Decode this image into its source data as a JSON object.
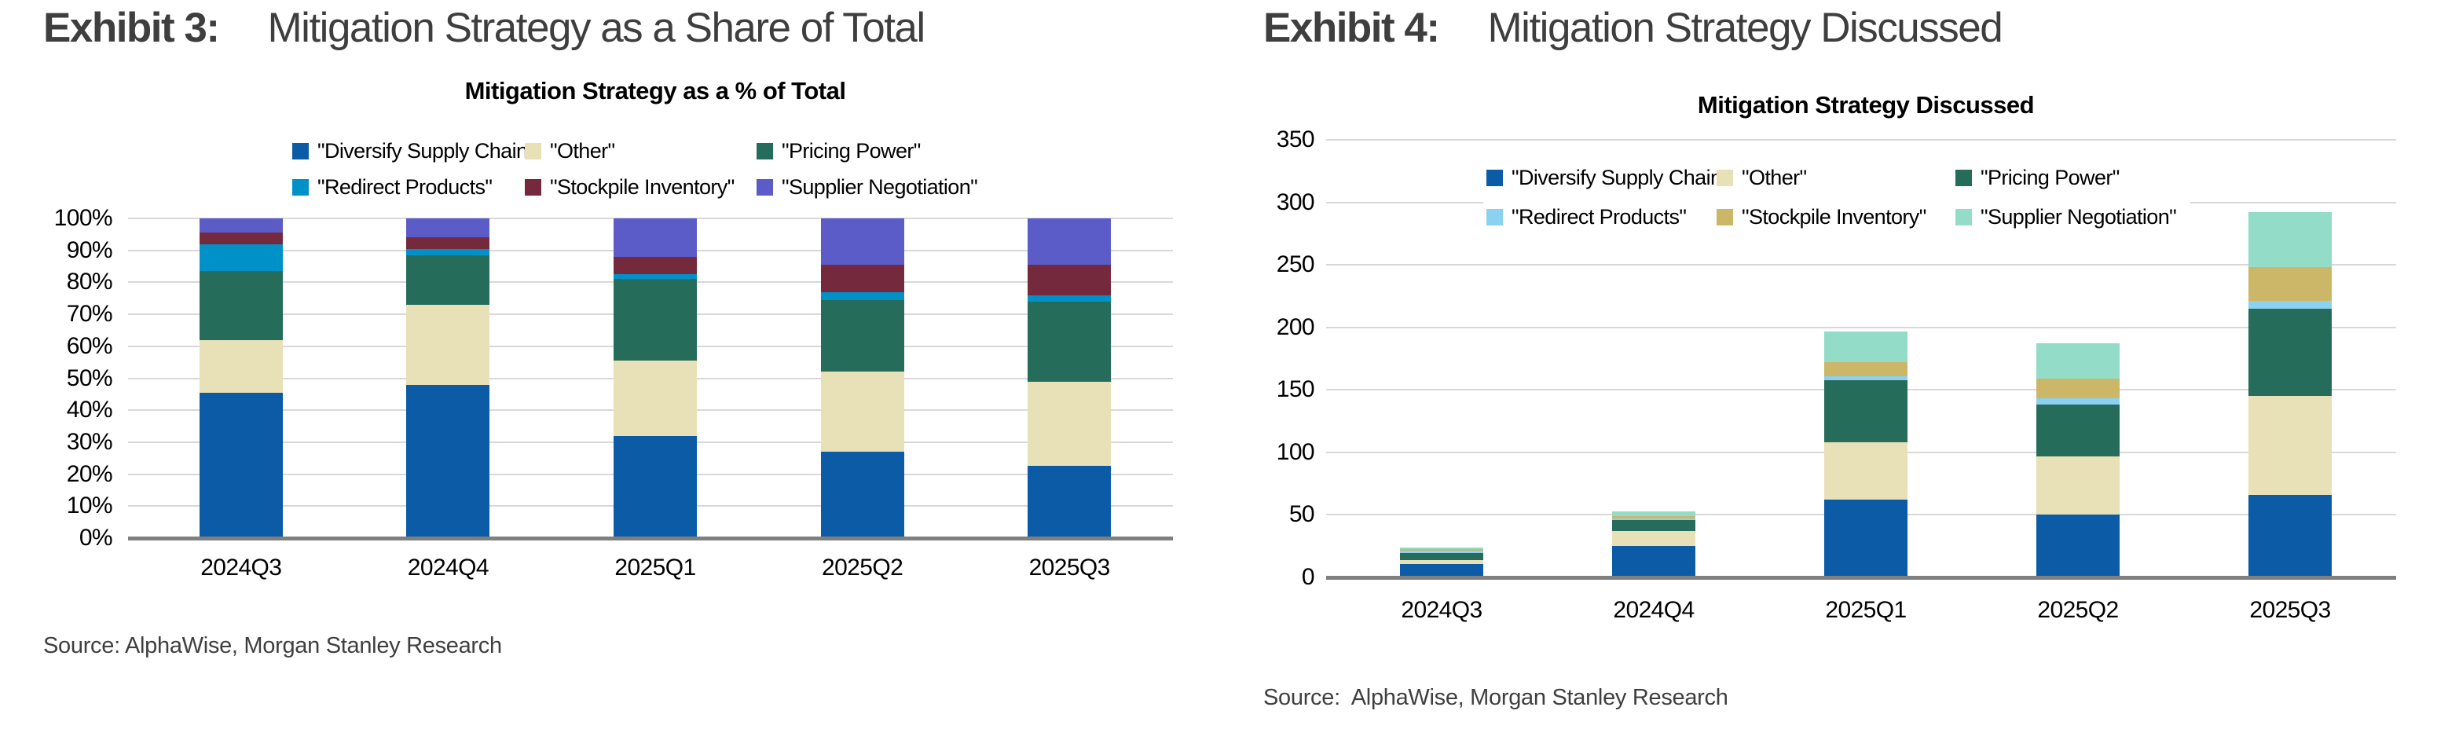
{
  "exhibit3": {
    "label": "Exhibit 3:",
    "title": "Mitigation Strategy as a Share of Total",
    "source": "Source: AlphaWise, Morgan Stanley Research"
  },
  "exhibit4": {
    "label": "Exhibit 4:",
    "title": "Mitigation Strategy Discussed",
    "source": "Source:  AlphaWise, Morgan Stanley Research"
  },
  "chart_data": [
    {
      "type": "bar",
      "stacked": true,
      "percent": true,
      "title": "Mitigation Strategy as a % of Total",
      "categories": [
        "2024Q3",
        "2024Q4",
        "2025Q1",
        "2025Q2",
        "2025Q3"
      ],
      "series": [
        {
          "name": "\"Diversify Supply Chain\"",
          "color": "#0b5ba7",
          "values": [
            45.5,
            48,
            32,
            27,
            22.5
          ]
        },
        {
          "name": "\"Other\"",
          "color": "#e8e0b6",
          "values": [
            16.5,
            25,
            23.5,
            25,
            26.5
          ]
        },
        {
          "name": "\"Pricing Power\"",
          "color": "#266c5a",
          "values": [
            21.5,
            15.5,
            25.5,
            22.5,
            25
          ]
        },
        {
          "name": "\"Redirect Products\"",
          "color": "#0091c9",
          "values": [
            8.5,
            2,
            1.5,
            2.5,
            2
          ]
        },
        {
          "name": "\"Stockpile Inventory\"",
          "color": "#75293d",
          "values": [
            3.5,
            3.5,
            5.5,
            8.5,
            9.5
          ]
        },
        {
          "name": "\"Supplier Negotiation\"",
          "color": "#5c5cc8",
          "values": [
            4.5,
            6,
            12,
            14.5,
            14.5
          ]
        }
      ],
      "ylim": [
        0,
        100
      ],
      "ytick_step": 10,
      "yticks": [
        "100%",
        "90%",
        "80%",
        "70%",
        "60%",
        "50%",
        "40%",
        "30%",
        "20%",
        "10%",
        "0%"
      ],
      "grid": true,
      "legend_position": "top"
    },
    {
      "type": "bar",
      "stacked": true,
      "percent": false,
      "title": "Mitigation Strategy Discussed",
      "categories": [
        "2024Q3",
        "2024Q4",
        "2025Q1",
        "2025Q2",
        "2025Q3"
      ],
      "series": [
        {
          "name": "\"Diversify Supply Chain\"",
          "color": "#0b5ba7",
          "values": [
            11,
            25,
            62,
            50,
            66
          ]
        },
        {
          "name": "\"Other\"",
          "color": "#e8e0b6",
          "values": [
            3,
            12,
            46,
            47,
            79
          ]
        },
        {
          "name": "\"Pricing Power\"",
          "color": "#266c5a",
          "values": [
            5.5,
            9,
            50,
            41,
            70
          ]
        },
        {
          "name": "\"Redirect Products\"",
          "color": "#8bd1f1",
          "values": [
            2,
            1,
            3,
            5,
            6
          ]
        },
        {
          "name": "\"Stockpile Inventory\"",
          "color": "#ccb668",
          "values": [
            1,
            2,
            11,
            16,
            27
          ]
        },
        {
          "name": "\"Supplier Negotiation\"",
          "color": "#92dcc8",
          "values": [
            1.5,
            4,
            25,
            28,
            44
          ]
        }
      ],
      "ylim": [
        0,
        350
      ],
      "ytick_step": 50,
      "yticks": [
        "350",
        "300",
        "250",
        "200",
        "150",
        "100",
        "50",
        "0"
      ],
      "grid": true,
      "legend_position": "inside-top"
    }
  ],
  "colors": {
    "gridline": "#d8d8d8",
    "baseline": "#7f7f7f",
    "header_text": "#3e3e3e",
    "source_text": "#3f3f3f",
    "chart_text": "#000000",
    "background": "#ffffff"
  }
}
